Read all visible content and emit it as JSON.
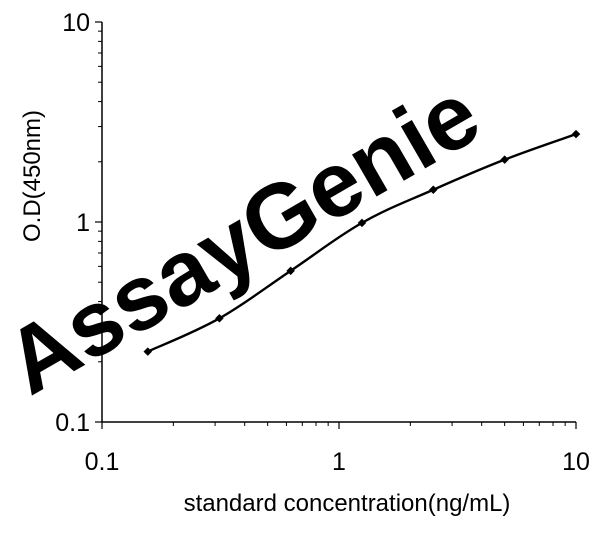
{
  "watermark": {
    "text": "AssayGenie",
    "color_left": "#cfe7f5",
    "color_right": "#d9dde5"
  },
  "colors": {
    "axis": "#000000",
    "series": "#000000",
    "background": "#ffffff"
  },
  "chart_data": {
    "type": "line",
    "title": "",
    "xlabel": "standard concentration(ng/mL)",
    "ylabel": "O.D(450nm)",
    "xscale": "log",
    "yscale": "log",
    "xlim": [
      0.1,
      10
    ],
    "ylim": [
      0.1,
      10
    ],
    "x_ticks": [
      {
        "value": 0.1,
        "label": "0.1"
      },
      {
        "value": 1,
        "label": "1"
      },
      {
        "value": 10,
        "label": "10"
      }
    ],
    "y_ticks": [
      {
        "value": 0.1,
        "label": "0.1"
      },
      {
        "value": 1,
        "label": "1"
      },
      {
        "value": 10,
        "label": "10"
      }
    ],
    "grid": false,
    "legend": "none",
    "marker": "diamond",
    "series": [
      {
        "x": [
          0.156,
          0.313,
          0.625,
          1.25,
          2.5,
          5,
          10
        ],
        "y": [
          0.225,
          0.33,
          0.57,
          0.99,
          1.45,
          2.05,
          2.75
        ]
      }
    ]
  }
}
